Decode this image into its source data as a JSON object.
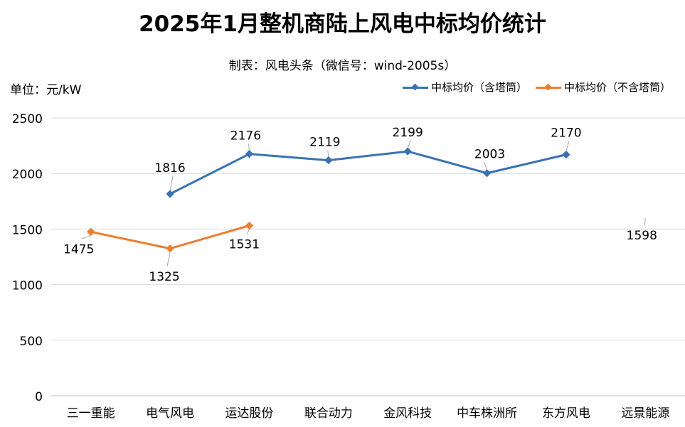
{
  "title": "2025年1月整机商陆上风电中标均价统计",
  "subtitle": "制表：风电头条（微信号：wind-2005s）",
  "unit_label": "单位：元/kW",
  "colors": {
    "series_with_tower": "#3a72b2",
    "series_without_tower": "#ed7d31",
    "grid": "#d9d9d9",
    "axis": "#bfbfbf"
  },
  "chart_data": {
    "type": "line",
    "categories": [
      "三一重能",
      "电气风电",
      "运达股份",
      "联合动力",
      "金风科技",
      "中车株洲所",
      "东方风电",
      "远景能源"
    ],
    "series": [
      {
        "name": "中标均价（含塔筒）",
        "values": [
          null,
          1816,
          2176,
          2119,
          2199,
          2003,
          2170,
          null
        ]
      },
      {
        "name": "中标均价（不含塔筒）",
        "values": [
          1475,
          1325,
          1531,
          null,
          null,
          null,
          null,
          1598
        ]
      }
    ],
    "yticks": [
      0,
      500,
      1000,
      1500,
      2000,
      2500
    ],
    "ylim": [
      0,
      2500
    ],
    "grid": true,
    "legend_position": "top-right"
  }
}
